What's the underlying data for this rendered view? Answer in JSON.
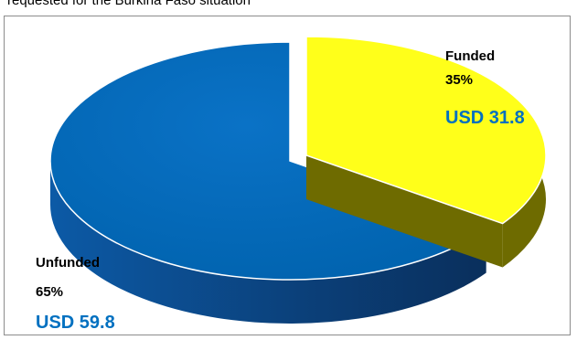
{
  "header": {
    "caption": "requested for the Burkina Faso situation"
  },
  "chart_data": {
    "type": "pie",
    "title": "",
    "slices": [
      {
        "label": "Funded",
        "percent_label": "35%",
        "amount_label": "USD 31.8",
        "value": 31.8,
        "percent": 35,
        "color": "#ffff1a",
        "side_color": "#6e6b00",
        "amount_color": "#0070c0",
        "exploded": true
      },
      {
        "label": "Unfunded",
        "percent_label": "65%",
        "amount_label": "USD 59.8",
        "value": 59.8,
        "percent": 65,
        "color": "#0070c0",
        "side_color": "#0d3f73",
        "amount_color": "#0070c0",
        "exploded": false
      }
    ],
    "style": "3d-exploded"
  }
}
